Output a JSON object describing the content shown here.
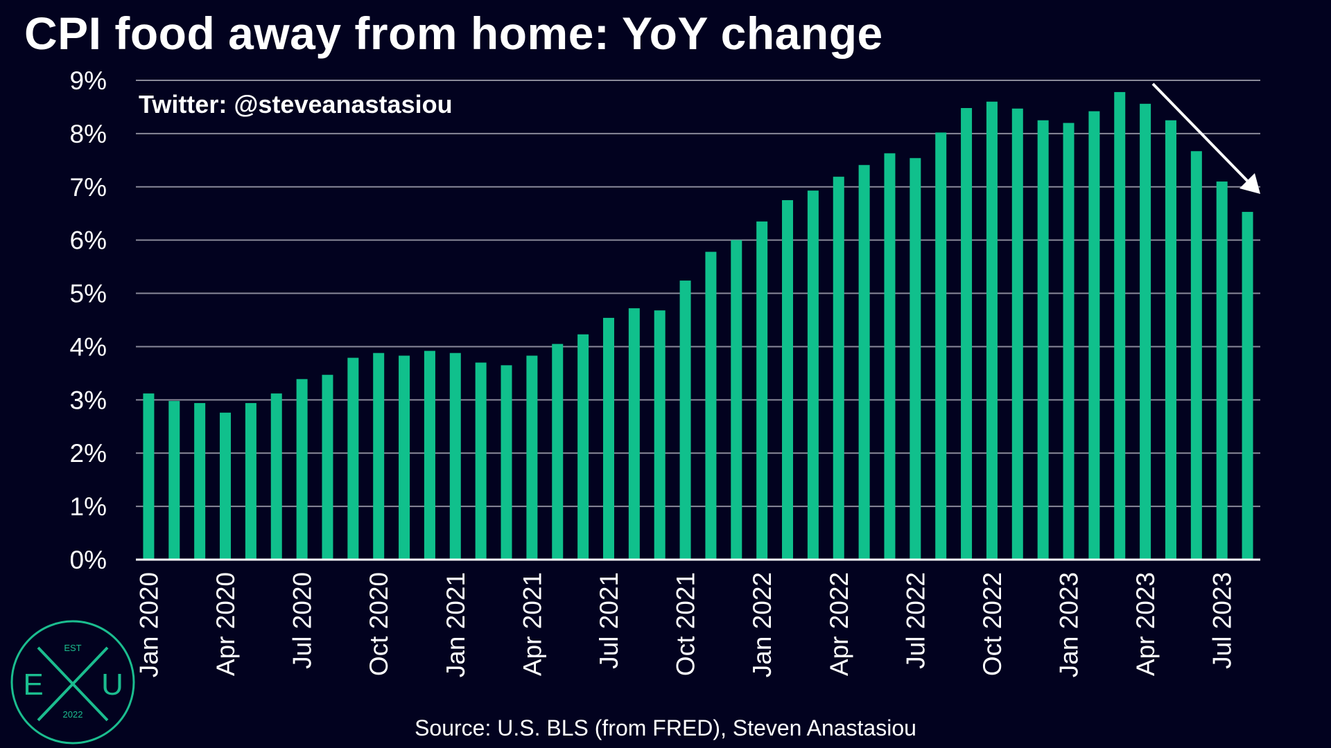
{
  "title": "CPI food away from home: YoY change",
  "watermark": "Twitter: @steveanastasiou",
  "source": "Source: U.S. BLS (from FRED), Steven Anastasiou",
  "logo": {
    "top_text": "EST",
    "left_letter": "E",
    "right_letter": "U",
    "bottom_text": "2022"
  },
  "colors": {
    "background": "#02021f",
    "bar": "#10c08c",
    "grid": "#8a8a99",
    "text": "#ffffff",
    "logo": "#1bbd8f"
  },
  "chart_data": {
    "type": "bar",
    "title": "CPI food away from home: YoY change",
    "xlabel": "",
    "ylabel": "",
    "ylim": [
      0,
      9
    ],
    "yticks": [
      0,
      1,
      2,
      3,
      4,
      5,
      6,
      7,
      8,
      9
    ],
    "ytick_suffix": "%",
    "grid": true,
    "trend_arrow": "down",
    "categories": [
      "Jan 2020",
      "Feb 2020",
      "Mar 2020",
      "Apr 2020",
      "May 2020",
      "Jun 2020",
      "Jul 2020",
      "Aug 2020",
      "Sep 2020",
      "Oct 2020",
      "Nov 2020",
      "Dec 2020",
      "Jan 2021",
      "Feb 2021",
      "Mar 2021",
      "Apr 2021",
      "May 2021",
      "Jun 2021",
      "Jul 2021",
      "Aug 2021",
      "Sep 2021",
      "Oct 2021",
      "Nov 2021",
      "Dec 2021",
      "Jan 2022",
      "Feb 2022",
      "Mar 2022",
      "Apr 2022",
      "May 2022",
      "Jun 2022",
      "Jul 2022",
      "Aug 2022",
      "Sep 2022",
      "Oct 2022",
      "Nov 2022",
      "Dec 2022",
      "Jan 2023",
      "Feb 2023",
      "Mar 2023",
      "Apr 2023",
      "May 2023",
      "Jun 2023",
      "Jul 2023",
      "Aug 2023"
    ],
    "xtick_labels": [
      "Jan 2020",
      "Apr 2020",
      "Jul 2020",
      "Oct 2020",
      "Jan 2021",
      "Apr 2021",
      "Jul 2021",
      "Oct 2021",
      "Jan 2022",
      "Apr 2022",
      "Jul 2022",
      "Oct 2022",
      "Jan 2023",
      "Apr 2023",
      "Jul 2023"
    ],
    "values": [
      3.12,
      2.98,
      2.94,
      2.76,
      2.94,
      3.12,
      3.39,
      3.47,
      3.79,
      3.88,
      3.83,
      3.92,
      3.88,
      3.7,
      3.65,
      3.83,
      4.05,
      4.23,
      4.54,
      4.72,
      4.68,
      5.24,
      5.78,
      6.0,
      6.35,
      6.75,
      6.93,
      7.19,
      7.41,
      7.63,
      7.54,
      8.02,
      8.48,
      8.6,
      8.47,
      8.25,
      8.2,
      8.42,
      8.78,
      8.56,
      8.25,
      7.67,
      7.1,
      6.53
    ]
  }
}
